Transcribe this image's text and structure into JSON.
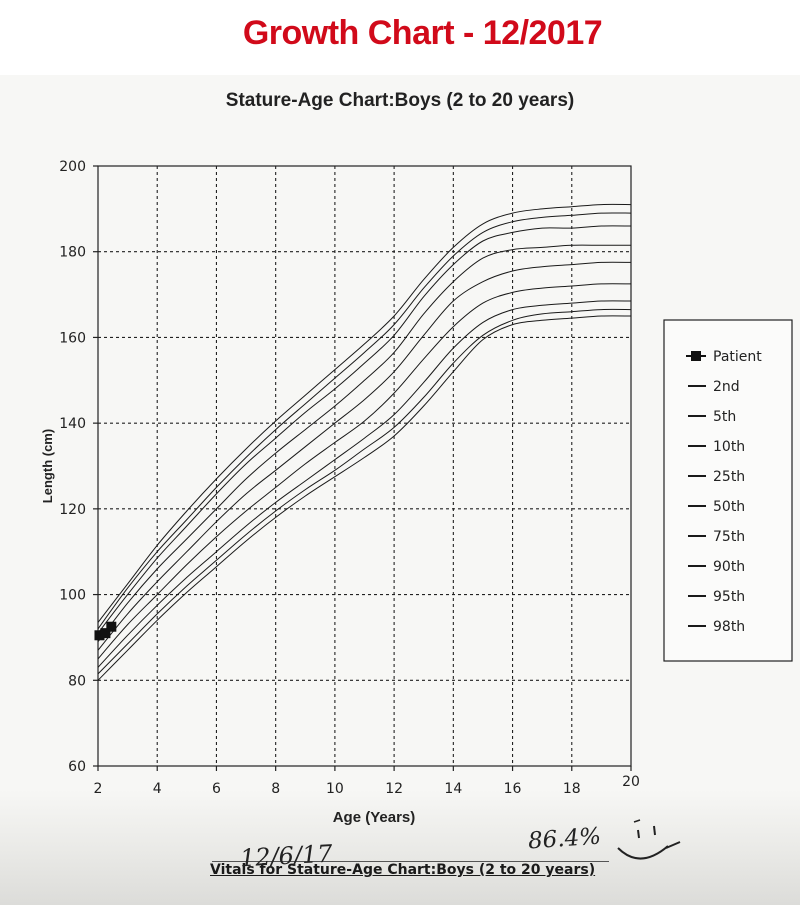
{
  "header": {
    "title": "Growth Chart - 12/2017",
    "title_color": "#d10a1a"
  },
  "footer": {
    "label": "Vitals for Stature-Age Chart:Boys (2 to 20 years)",
    "handwritten_date": "12/6/17",
    "handwritten_percentile": "86.4%",
    "doodle": "smiley-face-icon"
  },
  "chart_data": {
    "type": "line",
    "title": "Stature-Age Chart:Boys (2 to 20 years)",
    "xlabel": "Age (Years)",
    "ylabel": "Length (cm)",
    "xlim": [
      2,
      20
    ],
    "ylim": [
      60,
      200
    ],
    "xticks": [
      2,
      4,
      6,
      8,
      10,
      12,
      14,
      16,
      18,
      20
    ],
    "yticks": [
      60,
      80,
      100,
      120,
      140,
      160,
      180,
      200
    ],
    "grid": true,
    "legend_position": "right",
    "x": [
      2,
      3,
      4,
      5,
      6,
      7,
      8,
      9,
      10,
      11,
      12,
      13,
      14,
      15,
      16,
      17,
      18,
      19,
      20
    ],
    "series": [
      {
        "name": "2nd",
        "values": [
          80,
          87,
          94,
          100.5,
          106.5,
          112.5,
          118,
          123,
          127.5,
          132,
          137,
          144,
          152,
          159.5,
          163,
          164,
          164.5,
          165,
          165
        ]
      },
      {
        "name": "5th",
        "values": [
          81.5,
          88.5,
          95.5,
          102,
          108,
          114,
          119.5,
          124.5,
          129,
          134,
          139,
          146,
          154,
          160.5,
          164,
          165.5,
          166,
          166.5,
          166.5
        ]
      },
      {
        "name": "10th",
        "values": [
          83,
          90.5,
          97.5,
          104,
          110,
          116,
          121.5,
          126.5,
          131.5,
          136.5,
          142,
          149.5,
          157.5,
          163.5,
          166.5,
          167.5,
          168,
          168.5,
          168.5
        ]
      },
      {
        "name": "25th",
        "values": [
          85,
          93,
          100,
          107,
          113.5,
          119.5,
          125,
          130.5,
          135.5,
          140.5,
          147,
          155,
          162.5,
          168,
          170.5,
          171.5,
          172,
          172.5,
          172.5
        ]
      },
      {
        "name": "50th",
        "values": [
          87,
          95.5,
          103,
          110,
          117,
          123.5,
          129,
          134.5,
          140,
          145.5,
          152,
          160.5,
          168.5,
          173,
          175.5,
          176.5,
          177,
          177.5,
          177.5
        ]
      },
      {
        "name": "75th",
        "values": [
          89,
          98,
          106,
          113,
          120,
          127,
          133,
          138.5,
          144,
          150,
          156.5,
          165.5,
          173,
          178.5,
          180.5,
          181,
          181.5,
          181.5,
          181.5
        ]
      },
      {
        "name": "90th",
        "values": [
          91,
          100,
          108.5,
          116,
          123.5,
          130.5,
          136.5,
          142.5,
          148,
          154,
          160.5,
          169.5,
          177,
          182.5,
          184.5,
          185.5,
          185.5,
          186,
          186
        ]
      },
      {
        "name": "95th",
        "values": [
          92,
          101.5,
          110,
          117.5,
          125,
          132,
          138.5,
          144.5,
          150.5,
          156.5,
          163,
          171.5,
          179,
          184.5,
          187,
          188,
          188.5,
          189,
          189
        ]
      },
      {
        "name": "98th",
        "values": [
          93.5,
          102.5,
          111.5,
          119.5,
          127,
          134,
          140.5,
          146.5,
          152.5,
          158.5,
          165,
          173.5,
          181,
          186.5,
          189,
          190,
          190.5,
          191,
          191
        ]
      }
    ],
    "patient": {
      "name": "Patient",
      "points": [
        {
          "x": 2.05,
          "y": 90.5
        },
        {
          "x": 2.25,
          "y": 91.0
        },
        {
          "x": 2.45,
          "y": 92.5
        }
      ]
    },
    "series_color": "#1a1a1a",
    "grid_color": "#222222"
  }
}
